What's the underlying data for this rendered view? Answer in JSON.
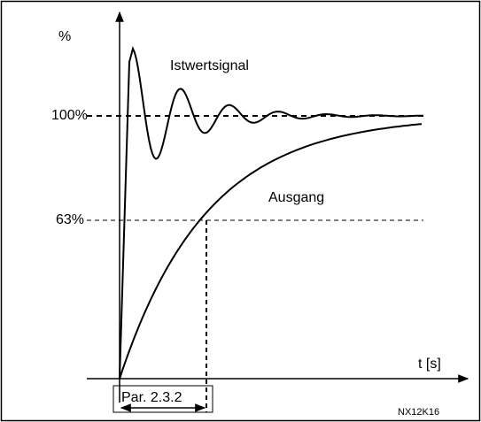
{
  "axis": {
    "y_label": "%",
    "x_label": "t [s]"
  },
  "levels": [
    "100%",
    "63%"
  ],
  "curves": [
    "Istwertsignal",
    "Ausgang"
  ],
  "parameter": "Par. 2.3.2",
  "figure_id": "NX12K16"
}
